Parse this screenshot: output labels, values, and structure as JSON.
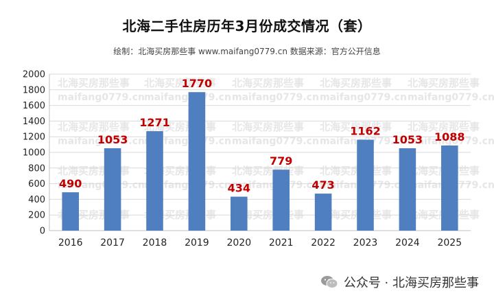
{
  "chart_data": {
    "type": "bar",
    "title": "北海二手住房历年3月份成交情况（套）",
    "subtitle": "绘制：北海买房那些事 www.maifang0779.cn   数据来源：官方公开信息",
    "categories": [
      "2016",
      "2017",
      "2018",
      "2019",
      "2020",
      "2021",
      "2022",
      "2023",
      "2024",
      "2025"
    ],
    "values": [
      490,
      1053,
      1271,
      1770,
      434,
      779,
      473,
      1162,
      1053,
      1088
    ],
    "ylim": [
      0,
      2000
    ],
    "yticks": [
      0,
      200,
      400,
      600,
      800,
      1000,
      1200,
      1400,
      1600,
      1800,
      2000
    ],
    "xlabel": "",
    "ylabel": "",
    "grid": true,
    "bar_color": "#4f7fbf",
    "label_color": "#c00000"
  },
  "watermark": {
    "text_cn": "北海买房那些事",
    "text_url": "maifang0779.cn"
  },
  "footer": {
    "text": "公众号 · 北海买房那些事",
    "icon": "wechat-icon"
  }
}
